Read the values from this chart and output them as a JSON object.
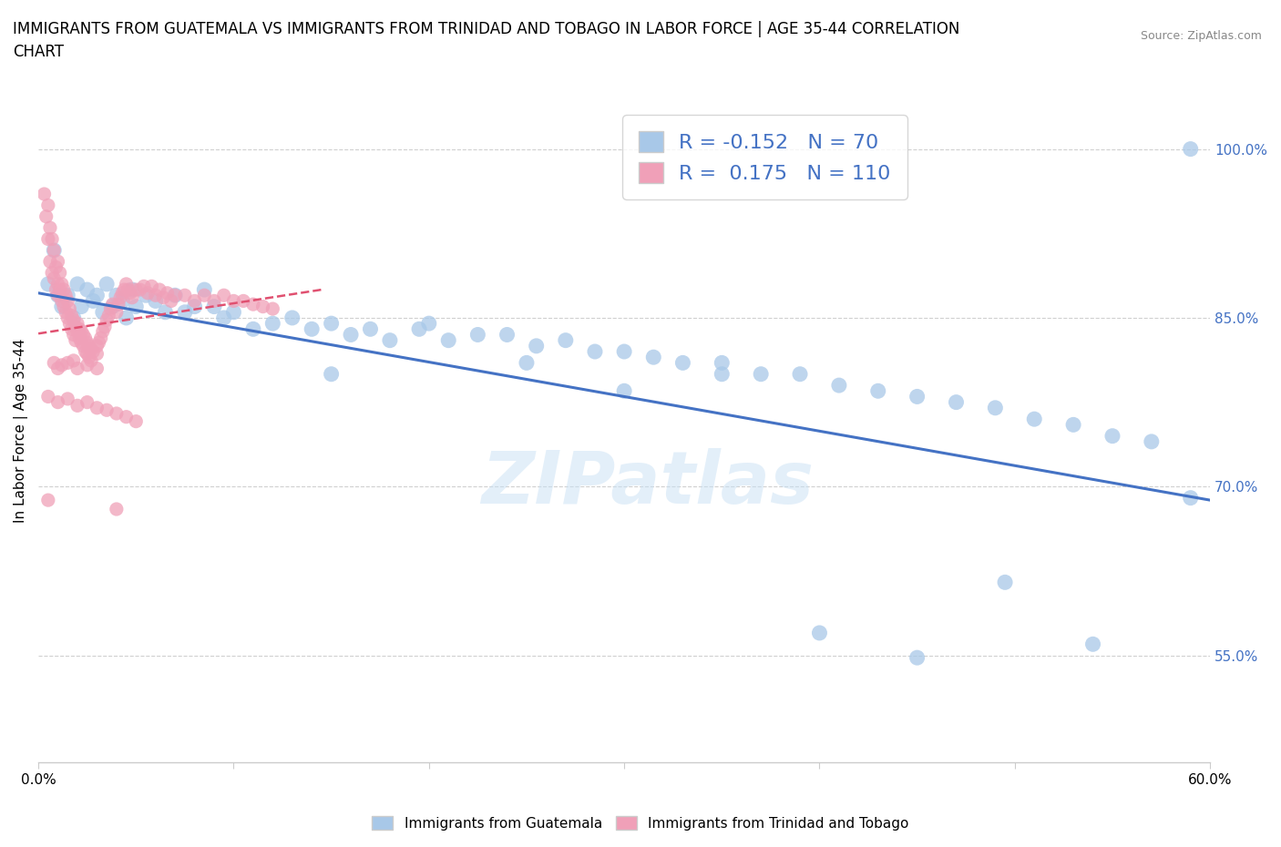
{
  "title": "IMMIGRANTS FROM GUATEMALA VS IMMIGRANTS FROM TRINIDAD AND TOBAGO IN LABOR FORCE | AGE 35-44 CORRELATION\nCHART",
  "source": "Source: ZipAtlas.com",
  "ylabel": "In Labor Force | Age 35-44",
  "xlim": [
    0.0,
    0.6
  ],
  "ylim": [
    0.455,
    1.045
  ],
  "xtick_values": [
    0.0,
    0.1,
    0.2,
    0.3,
    0.4,
    0.5,
    0.6
  ],
  "ytick_values": [
    0.55,
    0.7,
    0.85,
    1.0
  ],
  "blue_color": "#a8c8e8",
  "pink_color": "#f0a0b8",
  "blue_line_color": "#4472c4",
  "pink_line_color": "#e05070",
  "legend_text_color": "#4472c4",
  "R_blue": -0.152,
  "N_blue": 70,
  "R_pink": 0.175,
  "N_pink": 110,
  "blue_trend_x": [
    0.0,
    0.6
  ],
  "blue_trend_y": [
    0.872,
    0.688
  ],
  "pink_trend_x": [
    0.0,
    0.145
  ],
  "pink_trend_y": [
    0.836,
    0.875
  ],
  "blue_x": [
    0.005,
    0.008,
    0.01,
    0.012,
    0.015,
    0.018,
    0.02,
    0.022,
    0.025,
    0.028,
    0.03,
    0.033,
    0.035,
    0.038,
    0.04,
    0.043,
    0.045,
    0.048,
    0.05,
    0.055,
    0.06,
    0.065,
    0.07,
    0.075,
    0.08,
    0.085,
    0.09,
    0.095,
    0.1,
    0.11,
    0.12,
    0.13,
    0.14,
    0.15,
    0.16,
    0.17,
    0.18,
    0.195,
    0.21,
    0.225,
    0.24,
    0.255,
    0.27,
    0.285,
    0.3,
    0.315,
    0.33,
    0.35,
    0.37,
    0.39,
    0.41,
    0.43,
    0.45,
    0.47,
    0.49,
    0.51,
    0.53,
    0.55,
    0.57,
    0.59,
    0.15,
    0.2,
    0.25,
    0.3,
    0.35,
    0.4,
    0.45,
    0.54,
    0.495,
    0.59
  ],
  "blue_y": [
    0.88,
    0.91,
    0.87,
    0.86,
    0.87,
    0.85,
    0.88,
    0.86,
    0.875,
    0.865,
    0.87,
    0.855,
    0.88,
    0.86,
    0.87,
    0.865,
    0.85,
    0.875,
    0.86,
    0.87,
    0.865,
    0.855,
    0.87,
    0.855,
    0.86,
    0.875,
    0.86,
    0.85,
    0.855,
    0.84,
    0.845,
    0.85,
    0.84,
    0.845,
    0.835,
    0.84,
    0.83,
    0.84,
    0.83,
    0.835,
    0.835,
    0.825,
    0.83,
    0.82,
    0.82,
    0.815,
    0.81,
    0.81,
    0.8,
    0.8,
    0.79,
    0.785,
    0.78,
    0.775,
    0.77,
    0.76,
    0.755,
    0.745,
    0.74,
    0.69,
    0.8,
    0.845,
    0.81,
    0.785,
    0.8,
    0.57,
    0.548,
    0.56,
    0.615,
    1.0
  ],
  "pink_x": [
    0.003,
    0.004,
    0.005,
    0.005,
    0.006,
    0.006,
    0.007,
    0.007,
    0.008,
    0.008,
    0.009,
    0.009,
    0.01,
    0.01,
    0.01,
    0.011,
    0.011,
    0.012,
    0.012,
    0.013,
    0.013,
    0.014,
    0.014,
    0.015,
    0.015,
    0.016,
    0.016,
    0.017,
    0.017,
    0.018,
    0.018,
    0.019,
    0.019,
    0.02,
    0.02,
    0.021,
    0.021,
    0.022,
    0.022,
    0.023,
    0.023,
    0.024,
    0.024,
    0.025,
    0.025,
    0.026,
    0.026,
    0.027,
    0.027,
    0.028,
    0.03,
    0.03,
    0.031,
    0.032,
    0.033,
    0.034,
    0.035,
    0.036,
    0.037,
    0.038,
    0.04,
    0.041,
    0.042,
    0.043,
    0.044,
    0.045,
    0.046,
    0.047,
    0.048,
    0.05,
    0.052,
    0.054,
    0.056,
    0.058,
    0.06,
    0.062,
    0.064,
    0.066,
    0.068,
    0.07,
    0.075,
    0.08,
    0.085,
    0.09,
    0.095,
    0.1,
    0.105,
    0.11,
    0.115,
    0.12,
    0.008,
    0.01,
    0.012,
    0.015,
    0.018,
    0.02,
    0.025,
    0.03,
    0.005,
    0.01,
    0.015,
    0.02,
    0.025,
    0.03,
    0.035,
    0.04,
    0.045,
    0.05,
    0.005,
    0.04
  ],
  "pink_y": [
    0.96,
    0.94,
    0.95,
    0.92,
    0.93,
    0.9,
    0.92,
    0.89,
    0.91,
    0.885,
    0.895,
    0.875,
    0.9,
    0.88,
    0.87,
    0.89,
    0.875,
    0.88,
    0.865,
    0.875,
    0.86,
    0.87,
    0.855,
    0.865,
    0.85,
    0.858,
    0.845,
    0.852,
    0.84,
    0.848,
    0.835,
    0.842,
    0.83,
    0.845,
    0.838,
    0.84,
    0.832,
    0.838,
    0.828,
    0.835,
    0.825,
    0.832,
    0.82,
    0.828,
    0.818,
    0.825,
    0.815,
    0.822,
    0.812,
    0.82,
    0.825,
    0.818,
    0.828,
    0.832,
    0.838,
    0.842,
    0.848,
    0.852,
    0.858,
    0.862,
    0.855,
    0.862,
    0.868,
    0.872,
    0.875,
    0.88,
    0.875,
    0.872,
    0.868,
    0.875,
    0.875,
    0.878,
    0.872,
    0.878,
    0.87,
    0.875,
    0.868,
    0.872,
    0.865,
    0.87,
    0.87,
    0.865,
    0.87,
    0.865,
    0.87,
    0.865,
    0.865,
    0.862,
    0.86,
    0.858,
    0.81,
    0.805,
    0.808,
    0.81,
    0.812,
    0.805,
    0.808,
    0.805,
    0.78,
    0.775,
    0.778,
    0.772,
    0.775,
    0.77,
    0.768,
    0.765,
    0.762,
    0.758,
    0.688,
    0.68
  ]
}
